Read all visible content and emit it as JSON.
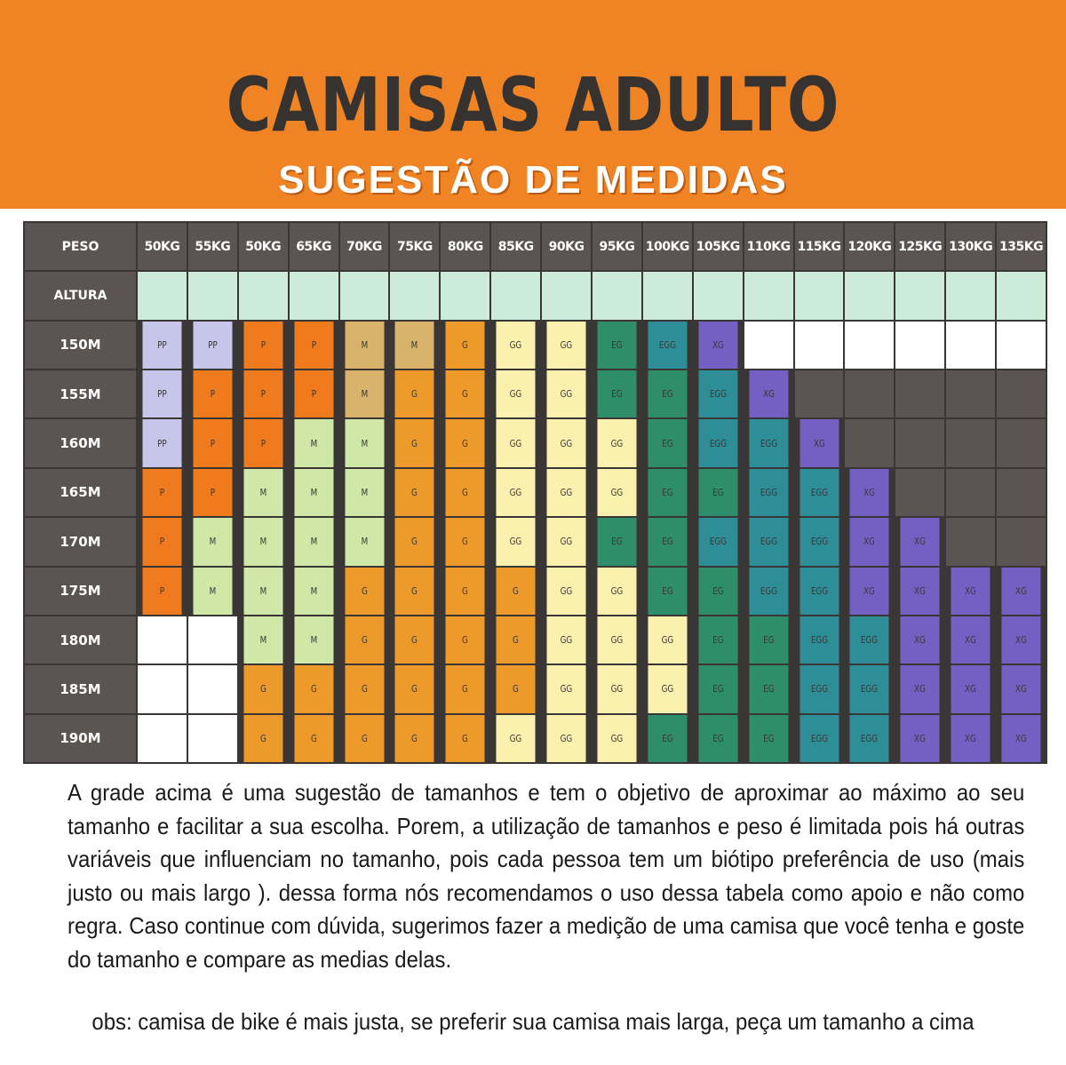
{
  "header": {
    "title": "CAMISAS ADULTO",
    "subtitle": "SUGESTÃO DE MEDIDAS"
  },
  "colors": {
    "header_bg": "#F08424",
    "title_text": "#353230",
    "grid_header_bg": "#5A5452",
    "PP": "#C7C5EA",
    "P": "#F07A1E",
    "M": "#CFE8A8",
    "M_tan": "#D9B36B",
    "G": "#EE9A2A",
    "GG": "#FBF1AE",
    "EG": "#2E8E6B",
    "EGG": "#2E8E98",
    "XG": "#7261C2",
    "altura_row": "#CDEBD9"
  },
  "table": {
    "peso_label": "PESO",
    "altura_label": "ALTURA",
    "weights": [
      "50KG",
      "55KG",
      "50KG",
      "65KG",
      "70KG",
      "75KG",
      "80KG",
      "85KG",
      "90KG",
      "95KG",
      "100KG",
      "105KG",
      "110KG",
      "115KG",
      "120KG",
      "125KG",
      "130KG",
      "135KG"
    ],
    "rows": [
      {
        "height": "150M",
        "cells": [
          "PP",
          "PP",
          "P",
          "P",
          "M*",
          "M*",
          "G",
          "GG",
          "GG",
          "EG",
          "EGG",
          "XG",
          "",
          "",
          "",
          "",
          "",
          ""
        ],
        "fill_after": "white"
      },
      {
        "height": "155M",
        "cells": [
          "PP",
          "P",
          "P",
          "P",
          "M*",
          "G",
          "G",
          "GG",
          "GG",
          "EG",
          "EG",
          "EGG",
          "XG",
          "",
          "",
          "",
          "",
          ""
        ],
        "fill_after": "dark"
      },
      {
        "height": "160M",
        "cells": [
          "PP",
          "P",
          "P",
          "M",
          "M",
          "G",
          "G",
          "GG",
          "GG",
          "GG",
          "EG",
          "EGG",
          "EGG",
          "XG",
          "",
          "",
          "",
          ""
        ],
        "fill_after": "dark"
      },
      {
        "height": "165M",
        "cells": [
          "P",
          "P",
          "M",
          "M",
          "M",
          "G",
          "G",
          "GG",
          "GG",
          "GG",
          "EG",
          "EG",
          "EGG",
          "EGG",
          "XG",
          "",
          "",
          ""
        ],
        "fill_after": "dark"
      },
      {
        "height": "170M",
        "cells": [
          "P",
          "M",
          "M",
          "M",
          "M",
          "G",
          "G",
          "GG",
          "GG",
          "EG",
          "EG",
          "EGG",
          "EGG",
          "EGG",
          "XG",
          "XG",
          "",
          ""
        ],
        "fill_after": "dark"
      },
      {
        "height": "175M",
        "cells": [
          "P",
          "M",
          "M",
          "M",
          "G",
          "G",
          "G",
          "G",
          "GG",
          "GG",
          "EG",
          "EG",
          "EGG",
          "EGG",
          "XG",
          "XG",
          "XG",
          "XG"
        ],
        "fill_after": "dark"
      },
      {
        "height": "180M",
        "cells": [
          "",
          "",
          "M",
          "M",
          "G",
          "G",
          "G",
          "G",
          "GG",
          "GG",
          "GG",
          "EG",
          "EG",
          "EGG",
          "EGG",
          "XG",
          "XG",
          "XG"
        ],
        "fill_after": "white"
      },
      {
        "height": "185M",
        "cells": [
          "",
          "",
          "G",
          "G",
          "G",
          "G",
          "G",
          "G",
          "GG",
          "GG",
          "GG",
          "EG",
          "EG",
          "EGG",
          "EGG",
          "XG",
          "XG",
          "XG"
        ],
        "fill_after": "white"
      },
      {
        "height": "190M",
        "cells": [
          "",
          "",
          "G",
          "G",
          "G",
          "G",
          "G",
          "GG",
          "GG",
          "GG",
          "EG",
          "EG",
          "EG",
          "EGG",
          "EGG",
          "XG",
          "XG",
          "XG"
        ],
        "fill_after": "white"
      }
    ]
  },
  "notes": {
    "paragraph": "A grade acima é uma sugestão de tamanhos e tem o objetivo de aproximar ao máximo ao seu tamanho e facilitar a sua escolha. Porem, a  utilização de tamanhos e peso é limitada pois há outras variáveis  que influenciam no tamanho, pois cada pessoa tem um biótipo preferência de uso (mais justo ou mais largo ). dessa forma nós recomendamos o uso  dessa tabela como  apoio e não  como regra. Caso continue com dúvida, sugerimos fazer a medição de uma camisa que você tenha e goste do tamanho e compare as medias delas.",
    "obs": "obs: camisa de bike é mais justa, se preferir sua camisa mais larga, peça um tamanho a cima"
  }
}
